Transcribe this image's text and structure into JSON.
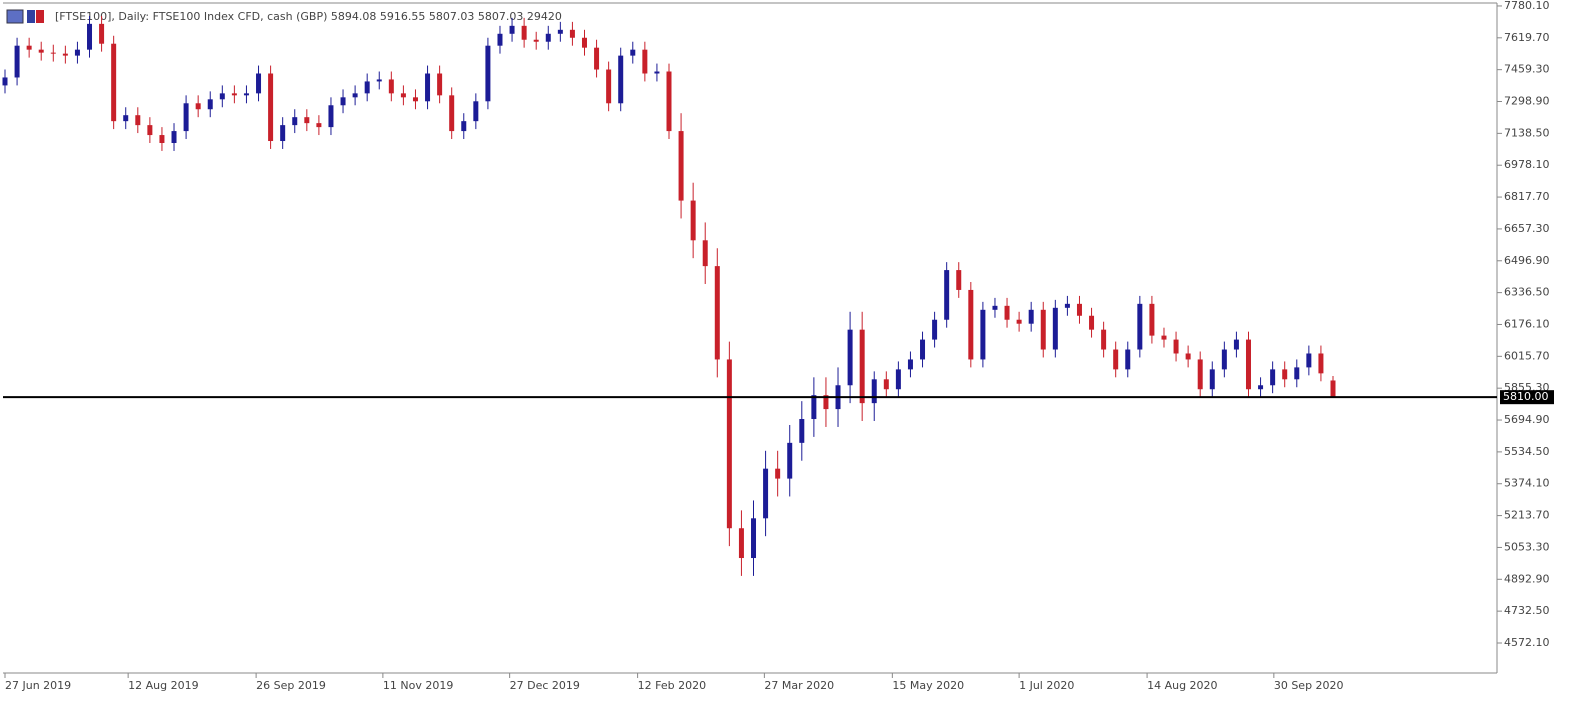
{
  "chart_data": {
    "type": "candlestick",
    "title": "[FTSE100], Daily:  FTSE100 Index CFD, cash (GBP)  5894.08 5916.55 5807.03 5807.03  29420",
    "up_color": "#1c1c96",
    "down_color": "#c8202a",
    "ylim": [
      4421,
      7795
    ],
    "yticks": [
      {
        "value": 7780.1,
        "label": "7780.10"
      },
      {
        "value": 7619.7,
        "label": "7619.70"
      },
      {
        "value": 7459.3,
        "label": "7459.30"
      },
      {
        "value": 7298.9,
        "label": "7298.90"
      },
      {
        "value": 7138.5,
        "label": "7138.50"
      },
      {
        "value": 6978.1,
        "label": "6978.10"
      },
      {
        "value": 6817.7,
        "label": "6817.70"
      },
      {
        "value": 6657.3,
        "label": "6657.30"
      },
      {
        "value": 6496.9,
        "label": "6496.90"
      },
      {
        "value": 6336.5,
        "label": "6336.50"
      },
      {
        "value": 6176.1,
        "label": "6176.10"
      },
      {
        "value": 6015.7,
        "label": "6015.70"
      },
      {
        "value": 5855.3,
        "label": "5855.30"
      },
      {
        "value": 5694.9,
        "label": "5694.90"
      },
      {
        "value": 5534.5,
        "label": "5534.50"
      },
      {
        "value": 5374.1,
        "label": "5374.10"
      },
      {
        "value": 5213.7,
        "label": "5213.70"
      },
      {
        "value": 5053.3,
        "label": "5053.30"
      },
      {
        "value": 4892.9,
        "label": "4892.90"
      },
      {
        "value": 4732.5,
        "label": "4732.50"
      },
      {
        "value": 4572.1,
        "label": "4572.10"
      }
    ],
    "xticks": [
      {
        "value": 0,
        "label": "27 Jun 2019"
      },
      {
        "value": 10.2,
        "label": "12 Aug 2019"
      },
      {
        "value": 20.8,
        "label": "26 Sep 2019"
      },
      {
        "value": 31.3,
        "label": "11 Nov 2019"
      },
      {
        "value": 41.8,
        "label": "27 Dec 2019"
      },
      {
        "value": 52.4,
        "label": "12 Feb 2020"
      },
      {
        "value": 62.9,
        "label": "27 Mar 2020"
      },
      {
        "value": 73.5,
        "label": "15 May 2020"
      },
      {
        "value": 84.0,
        "label": "1 Jul 2020"
      },
      {
        "value": 94.6,
        "label": "14 Aug 2020"
      },
      {
        "value": 105.1,
        "label": "30 Sep 2020"
      }
    ],
    "price_line": {
      "value": 5810,
      "label": "5810.00"
    },
    "open": [
      7380,
      7420,
      7580,
      7560,
      7545,
      7540,
      7530,
      7560,
      7690,
      7590,
      7200,
      7230,
      7180,
      7130,
      7090,
      7150,
      7290,
      7260,
      7310,
      7340,
      7330,
      7340,
      7440,
      7100,
      7180,
      7220,
      7190,
      7170,
      7280,
      7320,
      7340,
      7400,
      7410,
      7340,
      7320,
      7300,
      7440,
      7330,
      7150,
      7200,
      7300,
      7580,
      7640,
      7680,
      7610,
      7600,
      7640,
      7660,
      7620,
      7570,
      7460,
      7290,
      7530,
      7560,
      7440,
      7450,
      7150,
      6800,
      6600,
      6470,
      6000,
      5150,
      5000,
      5200,
      5450,
      5400,
      5580,
      5700,
      5820,
      5750,
      5870,
      6150,
      5780,
      5900,
      5850,
      5950,
      6000,
      6100,
      6200,
      6450,
      6350,
      6000,
      6250,
      6270,
      6200,
      6180,
      6250,
      6050,
      6260,
      6280,
      6220,
      6150,
      6050,
      5950,
      6050,
      6280,
      6120,
      6100,
      6030,
      6000,
      5850,
      5950,
      6050,
      6100,
      5850,
      5870,
      5950,
      5900,
      5960,
      6030,
      5894.08
    ],
    "high": [
      7460,
      7620,
      7620,
      7600,
      7585,
      7580,
      7600,
      7730,
      7730,
      7630,
      7270,
      7270,
      7220,
      7170,
      7190,
      7330,
      7330,
      7350,
      7380,
      7380,
      7380,
      7480,
      7480,
      7220,
      7260,
      7260,
      7230,
      7320,
      7360,
      7380,
      7440,
      7450,
      7450,
      7380,
      7360,
      7480,
      7480,
      7370,
      7240,
      7340,
      7620,
      7680,
      7720,
      7720,
      7650,
      7680,
      7700,
      7700,
      7660,
      7610,
      7500,
      7570,
      7600,
      7600,
      7490,
      7490,
      7240,
      6890,
      6690,
      6560,
      6090,
      5240,
      5290,
      5540,
      5540,
      5670,
      5790,
      5910,
      5910,
      5960,
      6240,
      6240,
      5940,
      5940,
      5990,
      6040,
      6140,
      6240,
      6490,
      6490,
      6390,
      6290,
      6310,
      6310,
      6240,
      6290,
      6290,
      6300,
      6320,
      6320,
      6260,
      6190,
      6090,
      6090,
      6320,
      6320,
      6160,
      6140,
      6070,
      6040,
      5990,
      6090,
      6140,
      6140,
      5910,
      5990,
      5990,
      6000,
      6070,
      6070,
      5916.55
    ],
    "low": [
      7340,
      7380,
      7520,
      7505,
      7500,
      7490,
      7490,
      7520,
      7550,
      7160,
      7160,
      7140,
      7090,
      7050,
      7050,
      7110,
      7220,
      7220,
      7270,
      7290,
      7290,
      7300,
      7060,
      7060,
      7140,
      7150,
      7130,
      7130,
      7240,
      7280,
      7300,
      7360,
      7300,
      7280,
      7260,
      7260,
      7290,
      7110,
      7110,
      7160,
      7260,
      7540,
      7600,
      7570,
      7560,
      7560,
      7600,
      7580,
      7530,
      7420,
      7250,
      7250,
      7490,
      7400,
      7400,
      7110,
      6710,
      6510,
      6380,
      5910,
      5060,
      4910,
      4910,
      5110,
      5310,
      5310,
      5490,
      5610,
      5660,
      5660,
      5780,
      5690,
      5690,
      5810,
      5810,
      5910,
      5960,
      6060,
      6160,
      6310,
      5960,
      5960,
      6210,
      6160,
      6140,
      6140,
      6010,
      6010,
      6220,
      6180,
      6110,
      6010,
      5910,
      5910,
      6010,
      6080,
      6060,
      5990,
      5960,
      5810,
      5810,
      5910,
      6010,
      5810,
      5810,
      5830,
      5860,
      5860,
      5920,
      5890,
      5807.03
    ],
    "close": [
      7420,
      7580,
      7560,
      7545,
      7540,
      7530,
      7560,
      7690,
      7590,
      7200,
      7230,
      7180,
      7130,
      7090,
      7150,
      7290,
      7260,
      7310,
      7340,
      7330,
      7340,
      7440,
      7100,
      7180,
      7220,
      7190,
      7170,
      7280,
      7320,
      7340,
      7400,
      7410,
      7340,
      7320,
      7300,
      7440,
      7330,
      7150,
      7200,
      7300,
      7580,
      7640,
      7680,
      7610,
      7600,
      7640,
      7660,
      7620,
      7570,
      7460,
      7290,
      7530,
      7560,
      7440,
      7450,
      7150,
      6800,
      6600,
      6470,
      6000,
      5150,
      5000,
      5200,
      5450,
      5400,
      5580,
      5700,
      5820,
      5750,
      5870,
      6150,
      5780,
      5900,
      5850,
      5950,
      6000,
      6100,
      6200,
      6450,
      6350,
      6000,
      6250,
      6270,
      6200,
      6180,
      6250,
      6050,
      6260,
      6280,
      6220,
      6150,
      6050,
      5950,
      6050,
      6280,
      6120,
      6100,
      6030,
      6000,
      5850,
      5950,
      6050,
      6100,
      5850,
      5870,
      5950,
      5900,
      5960,
      6030,
      5930,
      5807.03
    ]
  }
}
